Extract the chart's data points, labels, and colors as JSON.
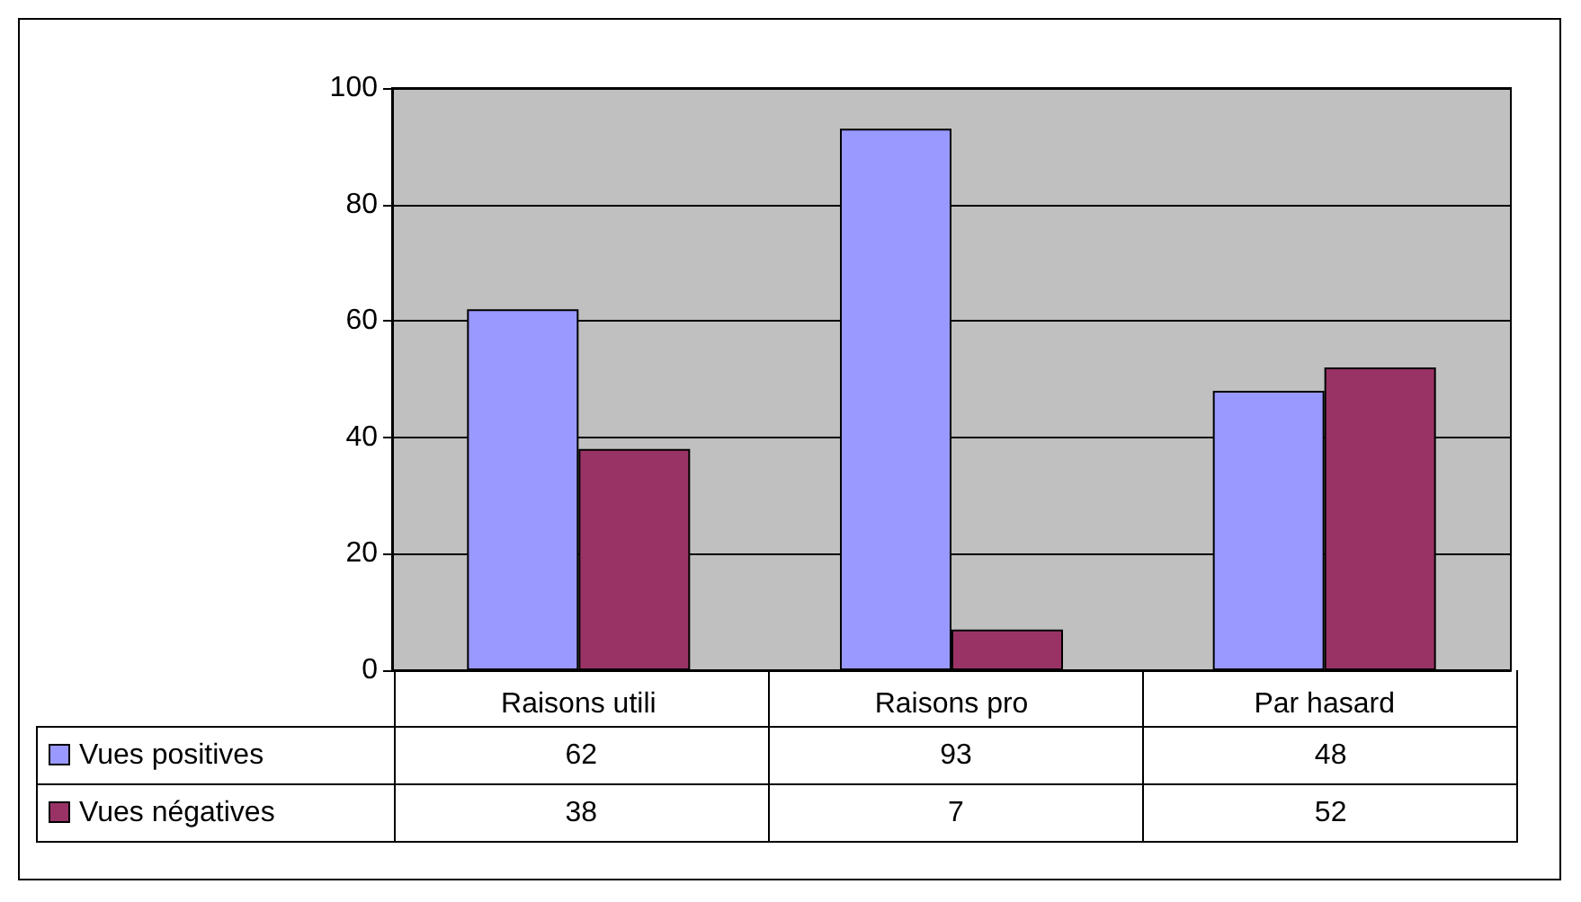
{
  "chart_data": {
    "type": "bar",
    "categories": [
      "Raisons utili",
      "Raisons pro",
      "Par hasard"
    ],
    "series": [
      {
        "name": "Vues positives",
        "color": "#9999ff",
        "values": [
          62,
          93,
          48
        ]
      },
      {
        "name": "Vues négatives",
        "color": "#993366",
        "values": [
          38,
          7,
          52
        ]
      }
    ],
    "ylim": [
      0,
      100
    ],
    "yticks": [
      0,
      20,
      40,
      60,
      80,
      100
    ],
    "grid": "y",
    "legend": "bottom left",
    "data_labels": true
  }
}
